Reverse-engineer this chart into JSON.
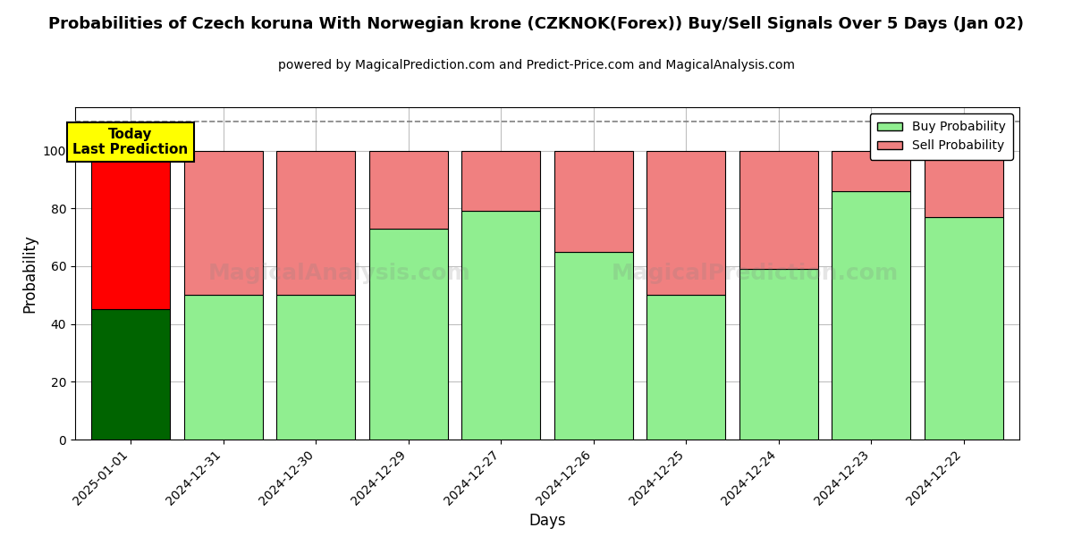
{
  "title": "Probabilities of Czech koruna With Norwegian krone (CZKNOK(Forex)) Buy/Sell Signals Over 5 Days (Jan 02)",
  "subtitle": "powered by MagicalPrediction.com and Predict-Price.com and MagicalAnalysis.com",
  "xlabel": "Days",
  "ylabel": "Probability",
  "categories": [
    "2025-01-01",
    "2024-12-31",
    "2024-12-30",
    "2024-12-29",
    "2024-12-27",
    "2024-12-26",
    "2024-12-25",
    "2024-12-24",
    "2024-12-23",
    "2024-12-22"
  ],
  "buy_values": [
    45,
    50,
    50,
    73,
    79,
    65,
    50,
    59,
    86,
    77
  ],
  "sell_values": [
    55,
    50,
    50,
    27,
    21,
    35,
    50,
    41,
    14,
    23
  ],
  "buy_colors": [
    "#006400",
    "#90EE90",
    "#90EE90",
    "#90EE90",
    "#90EE90",
    "#90EE90",
    "#90EE90",
    "#90EE90",
    "#90EE90",
    "#90EE90"
  ],
  "sell_colors": [
    "#FF0000",
    "#F08080",
    "#F08080",
    "#F08080",
    "#F08080",
    "#F08080",
    "#F08080",
    "#F08080",
    "#F08080",
    "#F08080"
  ],
  "today_label": "Today\nLast Prediction",
  "ylim": [
    0,
    115
  ],
  "yticks": [
    0,
    20,
    40,
    60,
    80,
    100
  ],
  "dashed_line_y": 110,
  "legend_buy_color": "#90EE90",
  "legend_sell_color": "#F08080",
  "bar_edge_color": "#000000",
  "bar_linewidth": 0.8,
  "bar_width": 0.85,
  "figsize": [
    12.0,
    6.0
  ],
  "dpi": 100
}
